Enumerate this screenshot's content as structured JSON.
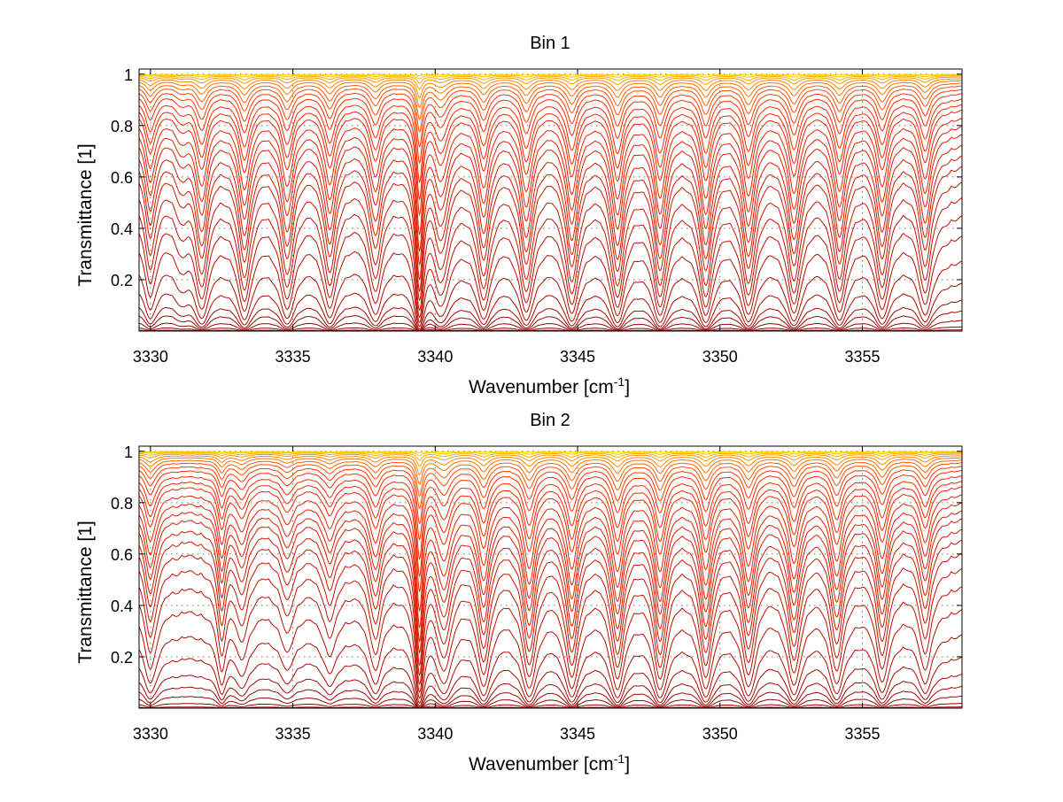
{
  "figure": {
    "background": "#ffffff"
  },
  "chart_data": [
    {
      "type": "line",
      "title": "Bin 1",
      "xlabel_main": "Wavenumber [cm",
      "xlabel_sup": "-1",
      "xlabel_close": "]",
      "ylabel": "Transmittance [1]",
      "xlim": [
        3329.6,
        3358.5
      ],
      "ylim": [
        0,
        1.02
      ],
      "xticks": [
        3330,
        3335,
        3340,
        3345,
        3350,
        3355
      ],
      "xtick_labels": [
        "3330",
        "3335",
        "3340",
        "3345",
        "3350",
        "3355"
      ],
      "yticks": [
        0.2,
        0.4,
        0.6,
        0.8,
        1
      ],
      "ytick_labels": [
        "0.2",
        "0.4",
        "0.6",
        "0.8",
        "1"
      ],
      "grid": true,
      "series_count": 30,
      "series_color_dark": "#8b0000",
      "series_color_mid": "#ff2a00",
      "series_color_light": "#ffd200",
      "continuum_levels": [
        0.005,
        0.018,
        0.045,
        0.085,
        0.13,
        0.2,
        0.29,
        0.39,
        0.47,
        0.54,
        0.6,
        0.66,
        0.7,
        0.74,
        0.78,
        0.81,
        0.84,
        0.87,
        0.89,
        0.91,
        0.93,
        0.945,
        0.958,
        0.968,
        0.977,
        0.984,
        0.99,
        0.994,
        0.997,
        0.999
      ],
      "absorption_lines": [
        {
          "x": 3330.0,
          "depth": 0.32,
          "width": 0.2
        },
        {
          "x": 3331.1,
          "depth": 0.12,
          "width": 0.25
        },
        {
          "x": 3331.8,
          "depth": 0.45,
          "width": 0.22
        },
        {
          "x": 3333.3,
          "depth": 0.48,
          "width": 0.22
        },
        {
          "x": 3334.8,
          "depth": 0.46,
          "width": 0.22
        },
        {
          "x": 3336.3,
          "depth": 0.44,
          "width": 0.22
        },
        {
          "x": 3337.9,
          "depth": 0.38,
          "width": 0.22
        },
        {
          "x": 3339.45,
          "depth": 0.9,
          "width": 0.12
        },
        {
          "x": 3340.2,
          "depth": 0.4,
          "width": 0.28
        },
        {
          "x": 3341.7,
          "depth": 0.46,
          "width": 0.22
        },
        {
          "x": 3343.2,
          "depth": 0.5,
          "width": 0.22
        },
        {
          "x": 3344.8,
          "depth": 0.52,
          "width": 0.22
        },
        {
          "x": 3346.4,
          "depth": 0.56,
          "width": 0.22
        },
        {
          "x": 3347.9,
          "depth": 0.55,
          "width": 0.22
        },
        {
          "x": 3349.5,
          "depth": 0.55,
          "width": 0.22
        },
        {
          "x": 3351.0,
          "depth": 0.54,
          "width": 0.22
        },
        {
          "x": 3352.6,
          "depth": 0.52,
          "width": 0.22
        },
        {
          "x": 3354.2,
          "depth": 0.5,
          "width": 0.22
        },
        {
          "x": 3355.7,
          "depth": 0.46,
          "width": 0.22
        },
        {
          "x": 3357.2,
          "depth": 0.4,
          "width": 0.22
        }
      ]
    },
    {
      "type": "line",
      "title": "Bin 2",
      "xlabel_main": "Wavenumber [cm",
      "xlabel_sup": "-1",
      "xlabel_close": "]",
      "ylabel": "Transmittance [1]",
      "xlim": [
        3329.6,
        3358.5
      ],
      "ylim": [
        0,
        1.02
      ],
      "xticks": [
        3330,
        3335,
        3340,
        3345,
        3350,
        3355
      ],
      "xtick_labels": [
        "3330",
        "3335",
        "3340",
        "3345",
        "3350",
        "3355"
      ],
      "yticks": [
        0.2,
        0.4,
        0.6,
        0.8,
        1
      ],
      "ytick_labels": [
        "0.2",
        "0.4",
        "0.6",
        "0.8",
        "1"
      ],
      "grid": true,
      "series_count": 30,
      "series_color_dark": "#8b0000",
      "series_color_mid": "#ff2a00",
      "series_color_light": "#ffd200",
      "continuum_levels": [
        0.005,
        0.02,
        0.05,
        0.09,
        0.14,
        0.21,
        0.3,
        0.4,
        0.49,
        0.56,
        0.62,
        0.67,
        0.71,
        0.75,
        0.78,
        0.81,
        0.84,
        0.87,
        0.89,
        0.91,
        0.93,
        0.945,
        0.958,
        0.968,
        0.977,
        0.984,
        0.99,
        0.994,
        0.997,
        0.999
      ],
      "absorption_lines": [
        {
          "x": 3330.0,
          "depth": 0.3,
          "width": 0.22
        },
        {
          "x": 3332.5,
          "depth": 0.3,
          "width": 0.15
        },
        {
          "x": 3333.2,
          "depth": 0.22,
          "width": 0.25
        },
        {
          "x": 3334.8,
          "depth": 0.18,
          "width": 0.25
        },
        {
          "x": 3336.3,
          "depth": 0.2,
          "width": 0.25
        },
        {
          "x": 3337.9,
          "depth": 0.3,
          "width": 0.22
        },
        {
          "x": 3339.45,
          "depth": 0.9,
          "width": 0.12
        },
        {
          "x": 3340.3,
          "depth": 0.42,
          "width": 0.3
        },
        {
          "x": 3341.7,
          "depth": 0.46,
          "width": 0.22
        },
        {
          "x": 3343.3,
          "depth": 0.5,
          "width": 0.22
        },
        {
          "x": 3344.8,
          "depth": 0.5,
          "width": 0.22
        },
        {
          "x": 3346.4,
          "depth": 0.52,
          "width": 0.22
        },
        {
          "x": 3347.9,
          "depth": 0.52,
          "width": 0.22
        },
        {
          "x": 3349.5,
          "depth": 0.5,
          "width": 0.22
        },
        {
          "x": 3351.0,
          "depth": 0.48,
          "width": 0.22
        },
        {
          "x": 3352.6,
          "depth": 0.46,
          "width": 0.22
        },
        {
          "x": 3354.1,
          "depth": 0.44,
          "width": 0.22
        },
        {
          "x": 3355.7,
          "depth": 0.42,
          "width": 0.22
        },
        {
          "x": 3357.2,
          "depth": 0.3,
          "width": 0.22
        }
      ]
    }
  ]
}
